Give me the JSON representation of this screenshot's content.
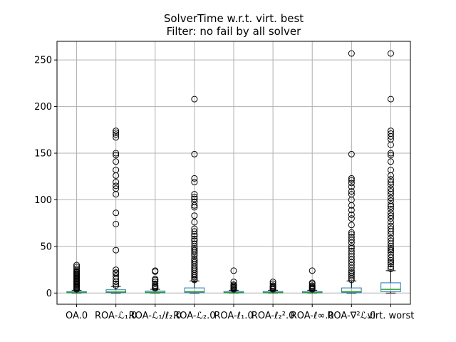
{
  "chart_data": {
    "type": "boxplot",
    "title": "SolverTime w.r.t. virt. best",
    "subtitle": "Filter: no fail by all solver",
    "xlabel": "",
    "ylabel": "",
    "ylim": [
      -12,
      270
    ],
    "yticks": [
      0,
      50,
      100,
      150,
      200,
      250
    ],
    "ytick_labels": [
      "0",
      "50",
      "100",
      "150",
      "200",
      "250"
    ],
    "grid": true,
    "legend": "none",
    "colors": {
      "box": "#1f77b4",
      "median": "#2ca02c",
      "whisker": "#000000",
      "outlier": "#000000",
      "grid": "#b0b0b0"
    },
    "categories": [
      "OA.0",
      "ROA-ℒ₁.0",
      "ROA-ℒ₁/ℓ₂.0",
      "ROA-ℒ₂.0",
      "ROA-ℓ₁.0",
      "ROA-ℓ₂².0",
      "ROA-ℓ∞.0",
      "ROA-∇²ℒ.0",
      "virt. worst"
    ],
    "boxes": [
      {
        "q1": 0.3,
        "median": 0.8,
        "q3": 1.5,
        "whislo": 0,
        "whishi": 3,
        "fliers": [
          4,
          5,
          6,
          7,
          8,
          9,
          10,
          11,
          12,
          13,
          14,
          15,
          16,
          17,
          18,
          19,
          20,
          21,
          22,
          23,
          24,
          26,
          28,
          30
        ]
      },
      {
        "q1": 0.5,
        "median": 1.2,
        "q3": 3.5,
        "whislo": 0,
        "whishi": 7,
        "fliers": [
          8,
          10,
          12,
          15,
          18,
          21,
          22,
          25,
          46,
          74,
          86,
          106,
          112,
          115,
          119,
          126,
          132,
          141,
          148,
          150,
          167,
          170,
          172,
          174
        ]
      },
      {
        "q1": 0.3,
        "median": 0.8,
        "q3": 2.2,
        "whislo": 0,
        "whishi": 4,
        "fliers": [
          5,
          6,
          7,
          8,
          10,
          12,
          14,
          15,
          23,
          24
        ]
      },
      {
        "q1": 0.5,
        "median": 1.5,
        "q3": 5.5,
        "whislo": 0,
        "whishi": 13,
        "fliers": [
          14,
          15,
          17,
          19,
          21,
          23,
          25,
          27,
          29,
          31,
          33,
          35,
          37,
          40,
          42,
          44,
          46,
          48,
          50,
          53,
          56,
          58,
          61,
          63,
          66,
          69,
          76,
          83,
          92,
          94,
          98,
          101,
          103,
          106,
          119,
          123,
          149,
          208
        ]
      },
      {
        "q1": 0.2,
        "median": 0.6,
        "q3": 1.6,
        "whislo": 0,
        "whishi": 3,
        "fliers": [
          4,
          5,
          6,
          7,
          8,
          9,
          12,
          24
        ]
      },
      {
        "q1": 0.2,
        "median": 0.6,
        "q3": 1.6,
        "whislo": 0,
        "whishi": 3,
        "fliers": [
          4,
          5,
          6,
          7,
          8,
          10,
          12
        ]
      },
      {
        "q1": 0.2,
        "median": 0.6,
        "q3": 1.6,
        "whislo": 0,
        "whishi": 3,
        "fliers": [
          4,
          5,
          6,
          7,
          8,
          10,
          11,
          24
        ]
      },
      {
        "q1": 0.5,
        "median": 1.5,
        "q3": 5.5,
        "whislo": 0,
        "whishi": 13,
        "fliers": [
          14,
          16,
          18,
          20,
          22,
          24,
          27,
          30,
          33,
          36,
          39,
          42,
          45,
          48,
          50,
          54,
          57,
          60,
          63,
          65,
          73,
          80,
          84,
          89,
          94,
          100,
          106,
          109,
          114,
          118,
          121,
          123,
          149,
          257
        ]
      },
      {
        "q1": 1.5,
        "median": 4,
        "q3": 11,
        "whislo": 0,
        "whishi": 24,
        "fliers": [
          26,
          28,
          31,
          33,
          35,
          38,
          41,
          44,
          46,
          48,
          50,
          53,
          56,
          59,
          63,
          66,
          69,
          72,
          76,
          80,
          83,
          86,
          90,
          93,
          95,
          99,
          102,
          106,
          109,
          112,
          116,
          119,
          122,
          126,
          132,
          141,
          148,
          150,
          159,
          165,
          168,
          171,
          174,
          208,
          257
        ]
      }
    ]
  }
}
